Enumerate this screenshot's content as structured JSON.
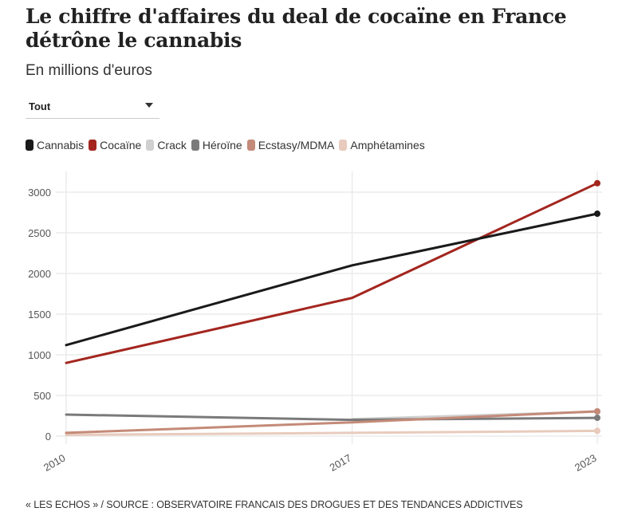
{
  "header": {
    "title": "Le chiffre d'affaires du deal de cocaïne en France détrône le cannabis",
    "subtitle": "En millions d'euros"
  },
  "filter": {
    "selected": "Tout",
    "icon": "caret-down-icon"
  },
  "legend": [
    {
      "label": "Cannabis",
      "color": "#1a1a1a"
    },
    {
      "label": "Cocaïne",
      "color": "#a3261f"
    },
    {
      "label": "Crack",
      "color": "#d0d0d0"
    },
    {
      "label": "Héroïne",
      "color": "#7a7a7a"
    },
    {
      "label": "Ecstasy/MDMA",
      "color": "#c48a78"
    },
    {
      "label": "Amphétamines",
      "color": "#e8cbbd"
    }
  ],
  "footer": {
    "source": "« LES ECHOS » / SOURCE : OBSERVATOIRE FRANCAIS DES DROGUES ET DES TENDANCES ADDICTIVES"
  },
  "chart_data": {
    "type": "line",
    "title": "Le chiffre d'affaires du deal de cocaïne en France détrône le cannabis",
    "subtitle": "En millions d'euros",
    "xlabel": "",
    "ylabel": "",
    "x": [
      "2010",
      "2017",
      "2023"
    ],
    "ylim": [
      0,
      3200
    ],
    "yticks": [
      0,
      500,
      1000,
      1500,
      2000,
      2500,
      3000
    ],
    "grid": true,
    "legend_position": "top-left",
    "series": [
      {
        "name": "Amphétamines",
        "color": "#e8cbbd",
        "values": [
          15,
          40,
          65
        ]
      },
      {
        "name": "Crack",
        "color": "#d0d0d0",
        "values": [
          null,
          210,
          300
        ]
      },
      {
        "name": "Héroïne",
        "color": "#7a7a7a",
        "values": [
          265,
          200,
          225
        ]
      },
      {
        "name": "Ecstasy/MDMA",
        "color": "#c48a78",
        "values": [
          40,
          170,
          305
        ]
      },
      {
        "name": "Cocaïne",
        "color": "#a3261f",
        "values": [
          900,
          1700,
          3110
        ]
      },
      {
        "name": "Cannabis",
        "color": "#1a1a1a",
        "values": [
          1120,
          2100,
          2735
        ]
      }
    ]
  }
}
